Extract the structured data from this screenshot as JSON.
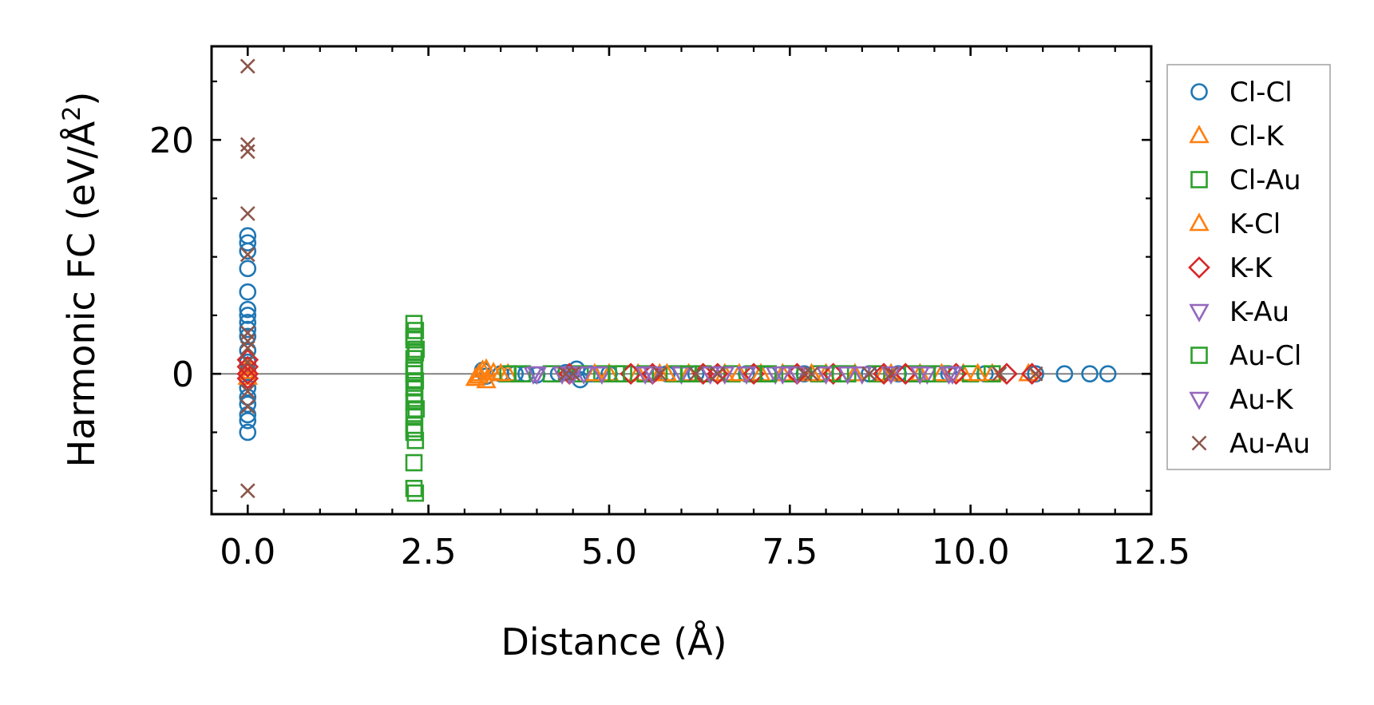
{
  "chart_data": {
    "type": "scatter",
    "title": "",
    "xlabel": "Distance (Å)",
    "ylabel": "Harmonic FC (eV/Å²)",
    "ylabel_main": "Harmonic FC (eV/Å",
    "ylabel_sup": "2",
    "ylabel_end": ")",
    "xlim": [
      -0.5,
      12.5
    ],
    "ylim": [
      -12,
      28
    ],
    "xticks": [
      0.0,
      2.5,
      5.0,
      7.5,
      10.0,
      12.5
    ],
    "xtick_labels": [
      "0.0",
      "2.5",
      "5.0",
      "7.5",
      "10.0",
      "12.5"
    ],
    "yticks": [
      0,
      20
    ],
    "ytick_labels": [
      "0",
      "20"
    ],
    "x_minor_step": 0.5,
    "y_minor_step": 5,
    "zero_line": true,
    "grid": false,
    "legend_position": "outside-right",
    "series": [
      {
        "name": "Cl-Cl",
        "marker": "circle",
        "color": "#1f77b4",
        "points": [
          [
            0,
            11.8
          ],
          [
            0,
            11.2
          ],
          [
            0,
            10.5
          ],
          [
            0,
            9.0
          ],
          [
            0,
            7.0
          ],
          [
            0,
            5.5
          ],
          [
            0,
            5.0
          ],
          [
            0,
            4.4
          ],
          [
            0,
            3.8
          ],
          [
            0,
            3.2
          ],
          [
            0,
            2.0
          ],
          [
            0,
            1.0
          ],
          [
            0,
            0.2
          ],
          [
            0,
            -0.5
          ],
          [
            0,
            -1.2
          ],
          [
            0,
            -2.0
          ],
          [
            0,
            -2.6
          ],
          [
            0,
            -3.5
          ],
          [
            0,
            -4.0
          ],
          [
            0,
            -5.0
          ],
          [
            3.25,
            0.3
          ],
          [
            3.3,
            -0.2
          ],
          [
            3.5,
            0
          ],
          [
            3.7,
            0
          ],
          [
            3.85,
            0
          ],
          [
            4.0,
            -0.1
          ],
          [
            4.3,
            0
          ],
          [
            4.4,
            0.1
          ],
          [
            4.55,
            0.4
          ],
          [
            4.6,
            -0.5
          ],
          [
            4.75,
            0
          ],
          [
            5.0,
            0
          ],
          [
            5.3,
            0
          ],
          [
            5.6,
            0
          ],
          [
            5.8,
            0
          ],
          [
            6.2,
            0
          ],
          [
            6.5,
            0
          ],
          [
            6.9,
            0
          ],
          [
            7.2,
            0
          ],
          [
            7.7,
            0
          ],
          [
            8.1,
            0
          ],
          [
            8.6,
            0
          ],
          [
            9.0,
            0
          ],
          [
            9.7,
            0
          ],
          [
            10.2,
            0
          ],
          [
            10.9,
            0
          ],
          [
            11.3,
            0
          ],
          [
            11.65,
            0
          ],
          [
            11.9,
            0
          ]
        ]
      },
      {
        "name": "Cl-K",
        "marker": "triangle-up",
        "color": "#ff7f0e",
        "points": [
          [
            0,
            0.6
          ],
          [
            0,
            0.2
          ],
          [
            0,
            -0.3
          ],
          [
            3.15,
            -0.4
          ],
          [
            3.2,
            0
          ],
          [
            3.25,
            0.3
          ],
          [
            3.3,
            -0.6
          ],
          [
            3.4,
            0.1
          ],
          [
            3.6,
            0
          ],
          [
            5.0,
            0
          ],
          [
            5.4,
            0
          ],
          [
            5.7,
            0
          ],
          [
            6.1,
            0
          ],
          [
            6.6,
            0
          ],
          [
            7.1,
            0
          ],
          [
            7.4,
            0
          ],
          [
            8.0,
            0
          ],
          [
            8.4,
            0
          ],
          [
            8.9,
            0
          ],
          [
            9.3,
            0
          ],
          [
            9.9,
            0
          ],
          [
            10.3,
            0
          ],
          [
            10.8,
            0
          ]
        ]
      },
      {
        "name": "Cl-Au",
        "marker": "square",
        "color": "#2ca02c",
        "points": [
          [
            2.3,
            4.3
          ],
          [
            2.32,
            3.7
          ],
          [
            2.3,
            2.9
          ],
          [
            2.33,
            2.1
          ],
          [
            2.3,
            1.3
          ],
          [
            2.31,
            0.6
          ],
          [
            2.3,
            0.0
          ],
          [
            2.32,
            -0.6
          ],
          [
            2.3,
            -1.2
          ],
          [
            2.31,
            -1.8
          ],
          [
            2.3,
            -2.4
          ],
          [
            2.33,
            -3.0
          ],
          [
            2.3,
            -3.6
          ],
          [
            2.31,
            -4.4
          ],
          [
            2.3,
            -5.0
          ],
          [
            2.32,
            -5.7
          ],
          [
            2.3,
            -7.6
          ],
          [
            2.3,
            -9.8
          ],
          [
            2.32,
            -10.2
          ],
          [
            3.6,
            0
          ],
          [
            4.2,
            0
          ],
          [
            4.6,
            0
          ],
          [
            4.9,
            0
          ],
          [
            5.2,
            0
          ],
          [
            5.5,
            0
          ],
          [
            5.9,
            0
          ],
          [
            6.3,
            0
          ],
          [
            6.7,
            0
          ],
          [
            7.0,
            0
          ],
          [
            7.5,
            0
          ],
          [
            7.9,
            0
          ],
          [
            8.3,
            0
          ],
          [
            8.7,
            0
          ],
          [
            9.2,
            0
          ],
          [
            9.6,
            0
          ],
          [
            10.0,
            0
          ],
          [
            10.3,
            0
          ]
        ]
      },
      {
        "name": "K-Cl",
        "marker": "triangle-up",
        "color": "#ff7f0e",
        "points": [
          [
            3.2,
            -0.2
          ],
          [
            3.3,
            0.4
          ],
          [
            3.5,
            0
          ],
          [
            4.8,
            0
          ],
          [
            5.8,
            0
          ],
          [
            6.8,
            0
          ],
          [
            7.8,
            0
          ],
          [
            8.8,
            0
          ],
          [
            9.6,
            0
          ],
          [
            10.1,
            0
          ]
        ]
      },
      {
        "name": "K-K",
        "marker": "diamond",
        "color": "#d62728",
        "points": [
          [
            0,
            1.2
          ],
          [
            0,
            0.6
          ],
          [
            0,
            0.0
          ],
          [
            0,
            -0.4
          ],
          [
            4.45,
            0
          ],
          [
            5.3,
            0
          ],
          [
            5.6,
            0
          ],
          [
            6.3,
            0
          ],
          [
            6.5,
            0
          ],
          [
            7.0,
            0
          ],
          [
            7.6,
            0
          ],
          [
            8.1,
            0
          ],
          [
            8.8,
            0
          ],
          [
            9.1,
            0
          ],
          [
            9.8,
            0
          ],
          [
            10.5,
            0
          ],
          [
            10.85,
            0
          ]
        ]
      },
      {
        "name": "K-Au",
        "marker": "triangle-down",
        "color": "#9467bd",
        "points": [
          [
            3.95,
            0
          ],
          [
            4.0,
            0
          ],
          [
            4.35,
            0
          ],
          [
            4.45,
            0
          ],
          [
            4.65,
            0
          ],
          [
            4.9,
            0
          ],
          [
            5.5,
            0
          ],
          [
            6.0,
            0
          ],
          [
            6.4,
            0
          ],
          [
            6.9,
            0
          ],
          [
            7.3,
            0
          ],
          [
            7.6,
            0
          ],
          [
            8.0,
            0
          ],
          [
            8.5,
            0
          ],
          [
            8.9,
            0
          ],
          [
            9.4,
            0
          ],
          [
            9.75,
            0
          ]
        ]
      },
      {
        "name": "Au-Cl",
        "marker": "square",
        "color": "#2ca02c",
        "points": [
          [
            2.3,
            3.2
          ],
          [
            2.32,
            1.8
          ],
          [
            2.3,
            0.3
          ],
          [
            2.31,
            -2.1
          ],
          [
            2.3,
            -4.7
          ],
          [
            3.8,
            0
          ],
          [
            5.1,
            0
          ],
          [
            6.1,
            0
          ],
          [
            7.2,
            0
          ],
          [
            8.2,
            0
          ],
          [
            9.4,
            0
          ]
        ]
      },
      {
        "name": "Au-K",
        "marker": "triangle-down",
        "color": "#9467bd",
        "points": [
          [
            4.0,
            0
          ],
          [
            4.5,
            0
          ],
          [
            5.6,
            0
          ],
          [
            6.6,
            0
          ],
          [
            7.4,
            0
          ],
          [
            8.3,
            0
          ],
          [
            9.3,
            0
          ],
          [
            9.7,
            0
          ]
        ]
      },
      {
        "name": "Au-Au",
        "marker": "x",
        "color": "#8c564b",
        "points": [
          [
            0,
            26.3
          ],
          [
            0,
            19.6
          ],
          [
            0,
            19.0
          ],
          [
            0,
            13.7
          ],
          [
            0,
            10.2
          ],
          [
            0,
            3.5
          ],
          [
            0,
            2.8
          ],
          [
            0,
            2.2
          ],
          [
            0,
            1.0
          ],
          [
            0,
            -1.5
          ],
          [
            0,
            -2.8
          ],
          [
            0,
            -10.0
          ],
          [
            4.4,
            0
          ],
          [
            4.5,
            0
          ],
          [
            5.7,
            0
          ],
          [
            6.2,
            0
          ],
          [
            6.5,
            0
          ],
          [
            7.7,
            0
          ],
          [
            7.8,
            0
          ],
          [
            8.6,
            0
          ],
          [
            8.9,
            0
          ],
          [
            10.4,
            0
          ],
          [
            10.9,
            0
          ]
        ]
      }
    ]
  }
}
